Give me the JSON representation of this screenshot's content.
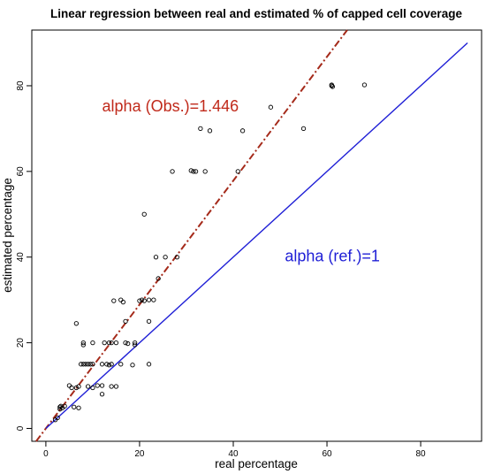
{
  "chart_data": {
    "type": "scatter",
    "title": "Linear regression between real and estimated % of capped cell coverage",
    "xlabel": "real percentage",
    "ylabel": "estimated percentage",
    "xlim": [
      -3,
      93
    ],
    "ylim": [
      -3,
      93
    ],
    "xticks": [
      0,
      20,
      40,
      60,
      80
    ],
    "yticks": [
      0,
      20,
      40,
      60,
      80
    ],
    "grid": false,
    "points": [
      [
        2,
        2
      ],
      [
        2.5,
        2.5
      ],
      [
        3,
        4.5
      ],
      [
        3,
        5
      ],
      [
        3.2,
        5.2
      ],
      [
        3.5,
        4.8
      ],
      [
        4,
        5.2
      ],
      [
        5,
        10
      ],
      [
        5.5,
        9.5
      ],
      [
        6,
        5
      ],
      [
        6.5,
        9.5
      ],
      [
        6.5,
        24.5
      ],
      [
        7,
        9.8
      ],
      [
        7,
        4.8
      ],
      [
        7.5,
        15
      ],
      [
        8,
        20
      ],
      [
        8,
        19.5
      ],
      [
        8,
        15
      ],
      [
        8.5,
        15
      ],
      [
        9,
        9.8
      ],
      [
        9,
        15
      ],
      [
        9.5,
        15
      ],
      [
        10,
        15
      ],
      [
        10,
        9.5
      ],
      [
        10,
        20
      ],
      [
        11,
        10
      ],
      [
        12,
        8
      ],
      [
        12,
        15
      ],
      [
        12,
        10
      ],
      [
        12.5,
        20
      ],
      [
        13,
        15
      ],
      [
        13.5,
        14.8
      ],
      [
        13.5,
        20
      ],
      [
        14,
        15
      ],
      [
        14,
        9.8
      ],
      [
        14,
        20
      ],
      [
        14.5,
        29.8
      ],
      [
        15,
        20
      ],
      [
        15,
        9.8
      ],
      [
        16,
        15
      ],
      [
        16,
        30
      ],
      [
        16.5,
        29.5
      ],
      [
        17,
        20
      ],
      [
        17,
        25
      ],
      [
        17.5,
        19.8
      ],
      [
        18.5,
        14.8
      ],
      [
        19,
        20
      ],
      [
        19,
        19.5
      ],
      [
        20,
        29.8
      ],
      [
        20.5,
        30
      ],
      [
        21,
        29.8
      ],
      [
        21,
        50
      ],
      [
        22,
        25
      ],
      [
        22,
        30
      ],
      [
        22,
        15
      ],
      [
        23,
        30
      ],
      [
        23.5,
        40
      ],
      [
        24,
        35
      ],
      [
        25.5,
        40
      ],
      [
        27,
        60
      ],
      [
        28,
        40
      ],
      [
        31,
        60.2
      ],
      [
        31.5,
        60
      ],
      [
        32,
        60
      ],
      [
        33,
        70
      ],
      [
        34,
        60
      ],
      [
        35,
        69.5
      ],
      [
        41,
        60
      ],
      [
        42,
        69.5
      ],
      [
        48,
        75
      ],
      [
        55,
        70
      ],
      [
        61,
        80
      ],
      [
        61,
        80.2
      ],
      [
        61.2,
        79.8
      ],
      [
        68,
        80.2
      ]
    ],
    "series": [
      {
        "name": "alpha (Obs.)=1.446",
        "slope": 1.446,
        "intercept": 0,
        "x_range": [
          -3,
          93
        ],
        "color": "#a52a1a",
        "style": "dashdot"
      },
      {
        "name": "alpha (ref.)=1",
        "slope": 1,
        "intercept": 0,
        "x_range": [
          0,
          90
        ],
        "color": "#1f1fd6",
        "style": "solid"
      }
    ],
    "annotations": [
      {
        "text": "alpha (Obs.)=1.446",
        "x": 12,
        "y": 74,
        "color": "#c0291a"
      },
      {
        "text": "alpha (ref.)=1",
        "x": 51,
        "y": 39,
        "color": "#1f1fd6"
      }
    ],
    "point_color": "#000000"
  }
}
